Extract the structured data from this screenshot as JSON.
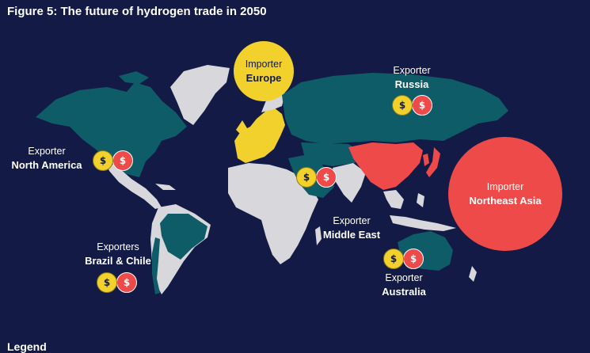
{
  "title": "Figure 5: The future of hydrogen trade in 2050",
  "colors": {
    "background": "#121a45",
    "land_other": "#d8d8dc",
    "exporter_land": "#0e5c68",
    "importer_europe": "#f2d12d",
    "importer_northeast_asia": "#ef4a4a"
  },
  "importers": {
    "europe": {
      "role": "Importer",
      "region": "Europe"
    },
    "northeast_asia": {
      "role": "Importer",
      "region": "Northeast Asia"
    }
  },
  "exporters": {
    "russia": {
      "role": "Exporter",
      "region": "Russia"
    },
    "north_america": {
      "role": "Exporter",
      "region": "North America"
    },
    "middle_east": {
      "role": "Exporter",
      "region": "Middle East"
    },
    "brazil_chile": {
      "role": "Exporters",
      "region": "Brazil & Chile"
    },
    "australia": {
      "role": "Exporter",
      "region": "Australia"
    }
  },
  "coin_symbol": "$",
  "legend_partial": "Legend"
}
